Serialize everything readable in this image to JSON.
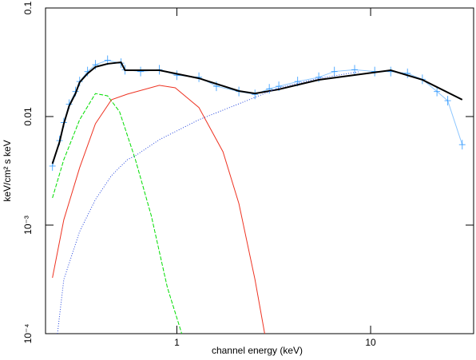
{
  "chart_data": {
    "type": "line",
    "xlabel": "channel energy (keV)",
    "ylabel": "keV/cm² s keV",
    "xscale": "log",
    "yscale": "log",
    "xlim": [
      0.21,
      34
    ],
    "ylim": [
      0.0001,
      0.1
    ],
    "xticks": [
      1,
      10
    ],
    "yticks": [
      {
        "value": 0.0001,
        "label": "10⁻⁴"
      },
      {
        "value": 0.001,
        "label": "10⁻³"
      },
      0.01,
      0.1
    ],
    "series": [
      {
        "color": "#1e90ff",
        "style": "crosses",
        "x": [
          0.228,
          0.248,
          0.261,
          0.278,
          0.3,
          0.315,
          0.346,
          0.38,
          0.439,
          0.515,
          0.54,
          0.65,
          0.812,
          1.0,
          1.3,
          1.6,
          2.09,
          2.53,
          3.0,
          3.36,
          4.2,
          5.4,
          6.5,
          8.27,
          10.5,
          12.7,
          15.5,
          18.5,
          22,
          25,
          29.7
        ],
        "values": [
          0.0035,
          0.006,
          0.0088,
          0.013,
          0.017,
          0.021,
          0.026,
          0.03,
          0.033,
          0.031,
          0.027,
          0.026,
          0.027,
          0.024,
          0.023,
          0.019,
          0.017,
          0.016,
          0.018,
          0.019,
          0.021,
          0.023,
          0.026,
          0.027,
          0.026,
          0.026,
          0.025,
          0.022,
          0.017,
          0.014,
          0.0055
        ]
      },
      {
        "color": "#000000",
        "style": "solid",
        "x": [
          0.228,
          0.248,
          0.261,
          0.278,
          0.3,
          0.315,
          0.346,
          0.38,
          0.439,
          0.515,
          0.54,
          0.812,
          1.3,
          2.09,
          2.53,
          3.36,
          5.4,
          8.27,
          12.7,
          18.5,
          29.7
        ],
        "values": [
          0.00368,
          0.00582,
          0.00859,
          0.0125,
          0.0163,
          0.0207,
          0.0249,
          0.0286,
          0.0306,
          0.0316,
          0.0267,
          0.0267,
          0.0225,
          0.0172,
          0.0163,
          0.0178,
          0.0218,
          0.0241,
          0.0267,
          0.0218,
          0.0143
        ]
      },
      {
        "color": "#00dd00",
        "style": "dashed",
        "x": [
          0.228,
          0.261,
          0.315,
          0.38,
          0.439,
          0.506,
          0.611,
          0.738,
          0.893,
          1.06
        ],
        "values": [
          0.00178,
          0.00401,
          0.00935,
          0.0163,
          0.0155,
          0.0111,
          0.00401,
          0.00122,
          0.000267,
          0.0001
        ]
      },
      {
        "color": "#ee3322",
        "style": "solid",
        "x": [
          0.228,
          0.261,
          0.315,
          0.38,
          0.46,
          0.556,
          0.812,
          0.981,
          1.3,
          1.73,
          2.09,
          2.53,
          2.84
        ],
        "values": [
          0.000327,
          0.00112,
          0.00338,
          0.00859,
          0.0143,
          0.0161,
          0.0194,
          0.0184,
          0.0121,
          0.00474,
          0.00158,
          0.000316,
          0.0001
        ]
      },
      {
        "color": "#2244dd",
        "style": "dotted",
        "x": [
          0.242,
          0.261,
          0.315,
          0.38,
          0.46,
          0.556,
          0.611,
          0.812,
          1.3,
          2.09,
          3.36,
          5.4,
          8.65
        ],
        "values": [
          0.0001,
          0.000316,
          0.000873,
          0.00172,
          0.00286,
          0.00401,
          0.00436,
          0.00612,
          0.00935,
          0.0131,
          0.0184,
          0.0225,
          0.0258
        ]
      }
    ]
  }
}
